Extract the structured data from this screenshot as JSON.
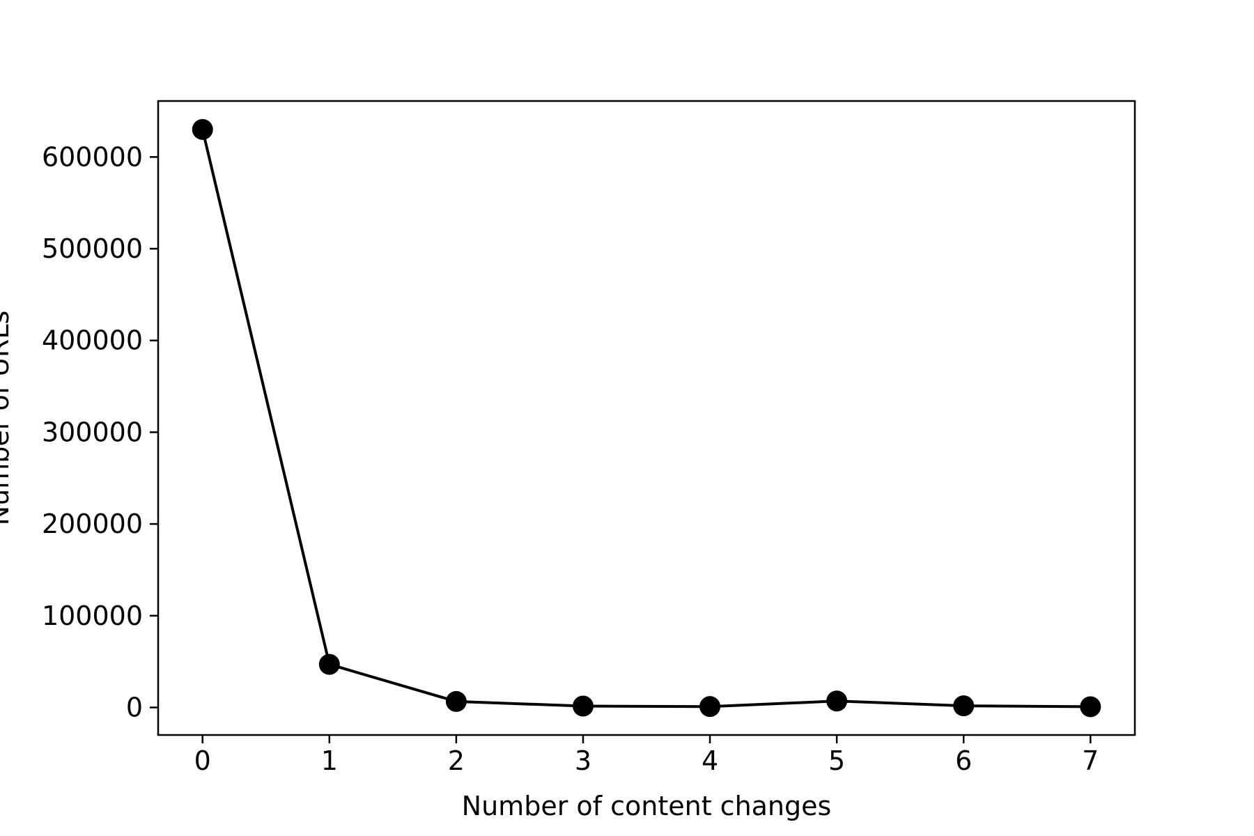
{
  "chart_data": {
    "type": "line",
    "title": "",
    "xlabel": "Number of content changes",
    "ylabel": "Number of URLs",
    "x": [
      0,
      1,
      2,
      3,
      4,
      5,
      6,
      7
    ],
    "series": [
      {
        "values": [
          630000,
          47000,
          6500,
          1500,
          1000,
          7000,
          1800,
          800
        ],
        "color": "#000000",
        "marker": "circle"
      }
    ],
    "xlim": [
      -0.35,
      7.35
    ],
    "ylim": [
      -30000,
      661000
    ],
    "xticks": [
      0,
      1,
      2,
      3,
      4,
      5,
      6,
      7
    ],
    "xtick_labels": [
      "0",
      "1",
      "2",
      "3",
      "4",
      "5",
      "6",
      "7"
    ],
    "yticks": [
      0,
      100000,
      200000,
      300000,
      400000,
      500000,
      600000
    ],
    "ytick_labels": [
      "0",
      "100000",
      "200000",
      "300000",
      "400000",
      "500000",
      "600000"
    ],
    "grid": false,
    "legend": false
  }
}
